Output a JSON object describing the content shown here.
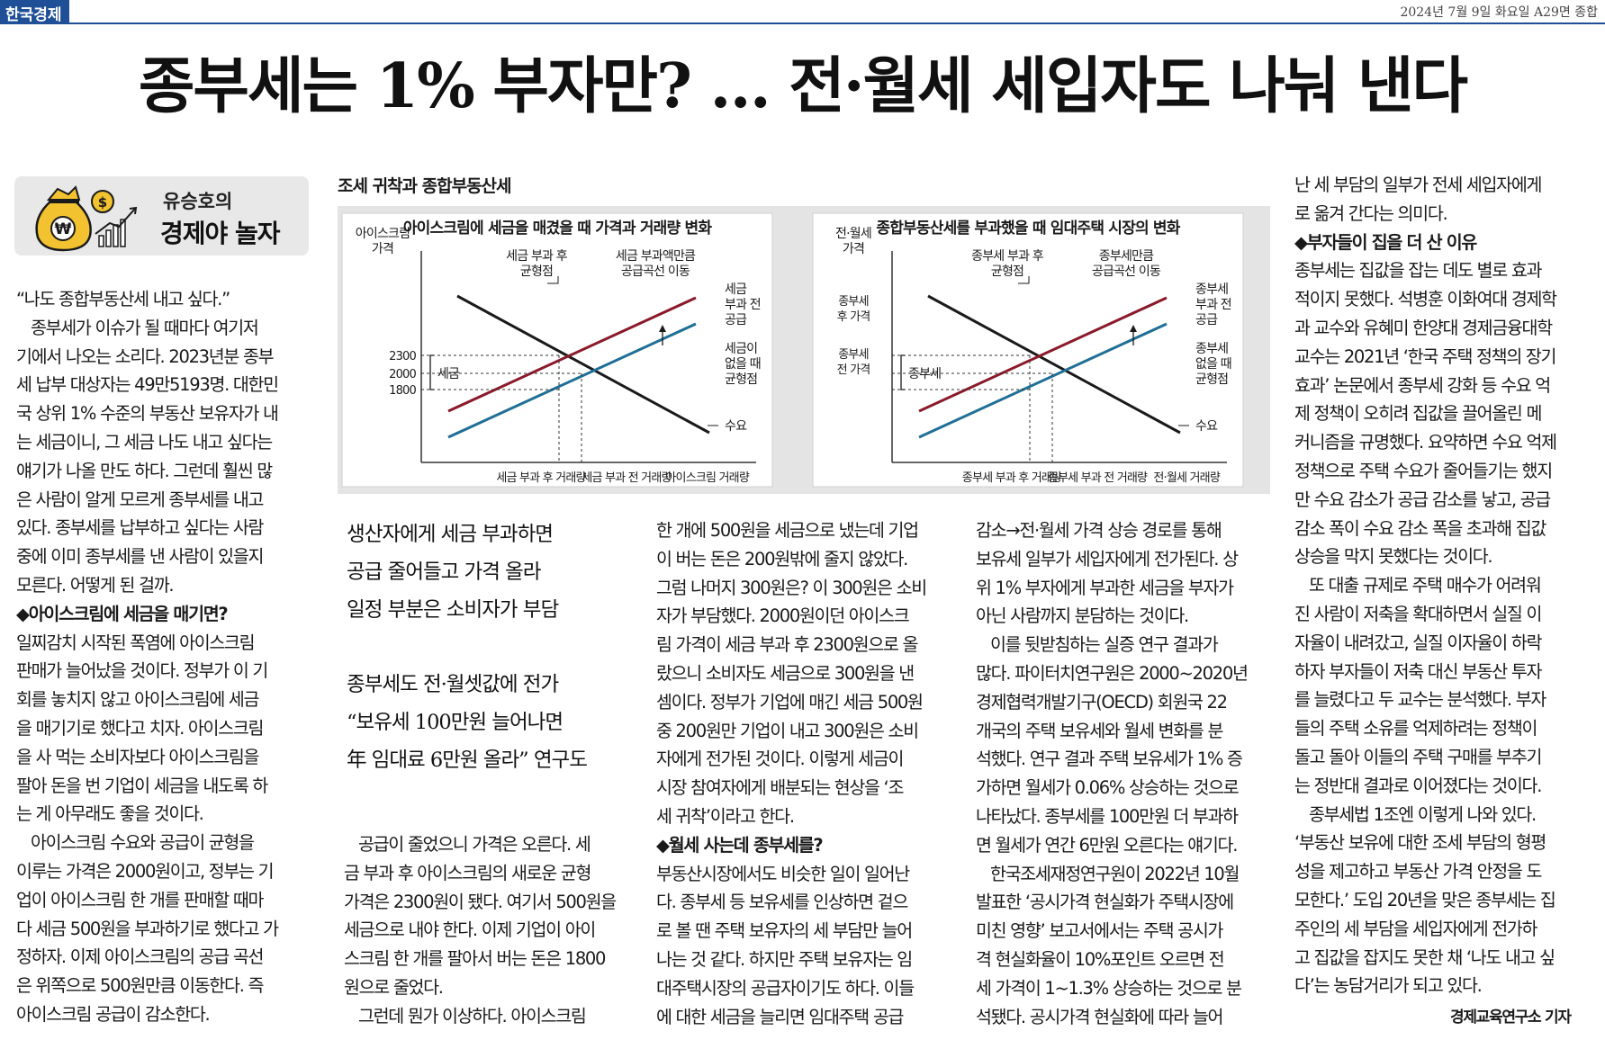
{
  "masthead": {
    "brand": "한국경제",
    "dateline": "2024년 7월 9일 화요일 A29면 종합"
  },
  "headline": "종부세는 1% 부자만? … 전·월세 세입자도 나눠 낸다",
  "column": {
    "author": "유승호의",
    "title": "경제야 놀자"
  },
  "chart": {
    "title": "조세 귀착과 종합부동산세",
    "left": {
      "title": "아이스크림에 세금을 매겼을 때 가격과 거래량 변화",
      "ylabel": [
        "아이스크림",
        "가격"
      ],
      "ticks": [
        "2300",
        "2000",
        "1800"
      ],
      "bracket_label": "세금",
      "annot_after_eq": [
        "세금 부과 후",
        "균형점"
      ],
      "annot_shift": [
        "세금 부과액만큼",
        "공급곡선 이동"
      ],
      "supply_after": [
        "세금",
        "부과 전",
        "공급"
      ],
      "eq_before": [
        "세금이",
        "없을 때",
        "균형점"
      ],
      "demand": "수요",
      "xlabels": [
        "세금 부과 후 거래량",
        "세금 부과 전 거래량",
        "아이스크림 거래량"
      ]
    },
    "right": {
      "title": "종합부동산세를 부과했을 때 임대주택 시장의 변화",
      "ylabel": [
        "전·월세",
        "가격"
      ],
      "price_after": [
        "종부세",
        "후 가격"
      ],
      "price_before": [
        "종부세",
        "전 가격"
      ],
      "bracket_label": "종부세",
      "annot_after_eq": [
        "종부세 부과 후",
        "균형점"
      ],
      "annot_shift": [
        "종부세만큼",
        "공급곡선 이동"
      ],
      "supply_before": [
        "종부세",
        "부과 전",
        "공급"
      ],
      "eq_before": [
        "종부세",
        "없을 때",
        "균형점"
      ],
      "demand": "수요",
      "xlabels": [
        "종부세 부과 후 거래량",
        "종부세 부과 전 거래량",
        "전·월세 거래량"
      ]
    },
    "colors": {
      "supply_after": "#8b1a2b",
      "supply_before": "#1f6f96",
      "demand": "#1a1a1a"
    }
  },
  "subheads": [
    [
      "생산자에게 세금 부과하면",
      "공급 줄어들고 가격 올라",
      "일정 부분은 소비자가 부담"
    ],
    [
      "종부세도 전·월셋값에 전가",
      "“보유세 100만원 늘어나면",
      " 年 임대료 6만원 올라” 연구도"
    ]
  ],
  "columns": [
    [
      "“나도 종합부동산세 내고 싶다.”",
      "  종부세가 이슈가 될 때마다 여기저",
      "기에서 나오는 소리다. 2023년분 종부",
      "세 납부 대상자는 49만5193명. 대한민",
      "국 상위 1% 수준의 부동산 보유자가 내",
      "는 세금이니, 그 세금 나도 내고 싶다는",
      "얘기가 나올 만도 하다. 그런데 훨씬 많",
      "은 사람이 알게 모르게 종부세를 내고",
      "있다. 종부세를 납부하고 싶다는 사람",
      "중에 이미 종부세를 낸 사람이 있을지",
      "모른다. 어떻게 된 걸까.",
      "◆아이스크림에 세금을 매기면?",
      "일찌감치 시작된 폭염에 아이스크림",
      "판매가 늘어났을 것이다. 정부가 이 기",
      "회를 놓치지 않고 아이스크림에 세금",
      "을 매기기로 했다고 치자. 아이스크림",
      "을 사 먹는 소비자보다 아이스크림을",
      "팔아 돈을 번 기업이 세금을 내도록 하",
      "는 게 아무래도 좋을 것이다.",
      "  아이스크림 수요와 공급이 균형을",
      "이루는 가격은 2000원이고, 정부는 기",
      "업이 아이스크림 한 개를 판매할 때마",
      "다 세금 500원을 부과하기로 했다고 가",
      "정하자. 이제 아이스크림의 공급 곡선",
      "은 위쪽으로 500원만큼 이동한다. 즉",
      "아이스크림 공급이 감소한다."
    ],
    [
      "  공급이 줄었으니 가격은 오른다. 세",
      "금 부과 후 아이스크림의 새로운 균형",
      "가격은 2300원이 됐다. 여기서 500원을",
      "세금으로 내야 한다. 이제 기업이 아이",
      "스크림 한 개를 팔아서 버는 돈은 1800",
      "원으로 줄었다.",
      "  그런데 뭔가 이상하다. 아이스크림"
    ],
    [
      "한 개에 500원을 세금으로 냈는데 기업",
      "이 버는 돈은 200원밖에 줄지 않았다.",
      "그럼 나머지 300원은? 이 300원은 소비",
      "자가 부담했다. 2000원이던 아이스크",
      "림 가격이 세금 부과 후 2300원으로 올",
      "랐으니 소비자도 세금으로 300원을 낸",
      "셈이다. 정부가 기업에 매긴 세금 500원",
      "중 200원만 기업이 내고 300원은 소비",
      "자에게 전가된 것이다. 이렇게 세금이",
      "시장 참여자에게 배분되는 현상을 ‘조",
      "세 귀착’이라고 한다.",
      "◆월세 사는데 종부세를?",
      "부동산시장에서도 비슷한 일이 일어난",
      "다. 종부세 등 보유세를 인상하면 겉으",
      "로 볼 땐 주택 보유자의 세 부담만 늘어",
      "나는 것 같다. 하지만 주택 보유자는 임",
      "대주택시장의 공급자이기도 하다. 이들",
      "에 대한 세금을 늘리면 임대주택 공급"
    ],
    [
      "감소→전·월세 가격 상승 경로를 통해",
      "보유세 일부가 세입자에게 전가된다. 상",
      "위 1% 부자에게 부과한 세금을 부자가",
      "아닌 사람까지 분담하는 것이다.",
      "  이를 뒷받침하는 실증 연구 결과가",
      "많다. 파이터치연구원은 2000~2020년",
      "경제협력개발기구(OECD) 회원국 22",
      "개국의 주택 보유세와 월세 변화를 분",
      "석했다. 연구 결과 주택 보유세가 1% 증",
      "가하면 월세가 0.06% 상승하는 것으로",
      "나타났다. 종부세를 100만원 더 부과하",
      "면 월세가 연간 6만원 오른다는 얘기다.",
      "  한국조세재정연구원이 2022년 10월",
      "발표한 ‘공시가격 현실화가 주택시장에",
      "미친 영향’ 보고서에서는 주택 공시가",
      "격 현실화율이 10%포인트 오르면 전",
      "세 가격이 1~1.3% 상승하는 것으로 분",
      "석됐다. 공시가격 현실화에 따라 늘어"
    ],
    [
      "난 세 부담의 일부가 전세 세입자에게",
      "로 옮겨 간다는 의미다.",
      "◆부자들이 집을 더 산 이유",
      "종부세는 집값을 잡는 데도 별로 효과",
      "적이지 못했다. 석병훈 이화여대 경제학",
      "과 교수와 유혜미 한양대 경제금융대학",
      "교수는 2021년 ‘한국 주택 정책의 장기",
      "효과’ 논문에서 종부세 강화 등 수요 억",
      "제 정책이 오히려 집값을 끌어올린 메",
      "커니즘을 규명했다. 요약하면 수요 억제",
      "정책으로 주택 수요가 줄어들기는 했지",
      "만 수요 감소가 공급 감소를 낳고, 공급",
      "감소 폭이 수요 감소 폭을 초과해 집값",
      "상승을 막지 못했다는 것이다.",
      "  또 대출 규제로 주택 매수가 어려워",
      "진 사람이 저축을 확대하면서 실질 이",
      "자율이 내려갔고, 실질 이자율이 하락",
      "하자 부자들이 저축 대신 부동산 투자",
      "를 늘렸다고 두 교수는 분석했다. 부자",
      "들의 주택 소유를 억제하려는 정책이",
      "돌고 돌아 이들의 주택 구매를 부추기",
      "는 정반대 결과로 이어졌다는 것이다.",
      "  종부세법 1조엔 이렇게 나와 있다.",
      "‘부동산 보유에 대한 조세 부담의 형평",
      "성을 제고하고 부동산 가격 안정을 도",
      "모한다.’ 도입 20년을 맞은 종부세는 집",
      "주인의 세 부담을 세입자에게 전가하",
      "고 집값을 잡지도 못한 채 ‘나도 내고 싶",
      "다’는 농담거리가 되고 있다."
    ]
  ],
  "byline": "경제교육연구소 기자"
}
